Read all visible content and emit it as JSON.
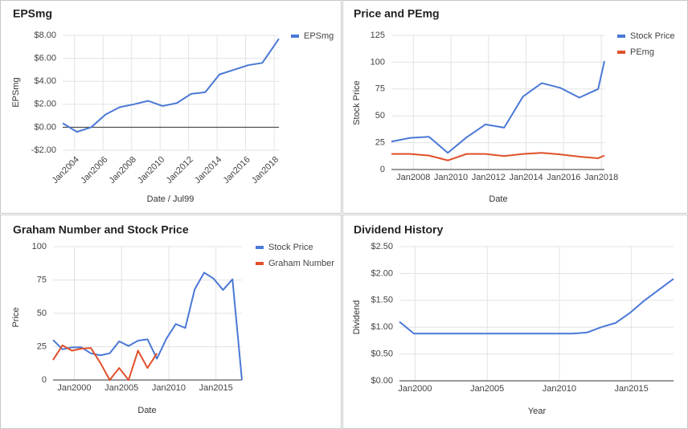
{
  "chart_data": [
    {
      "type": "line",
      "title": "EPSmg",
      "x_label": "Date / Jul99",
      "y_label": "EPSmg",
      "x": [
        "2003-03",
        "2004-03",
        "2005-03",
        "2006-03",
        "2007-03",
        "2008-03",
        "2009-03",
        "2010-03",
        "2011-03",
        "2012-03",
        "2013-03",
        "2014-03",
        "2015-03",
        "2016-03",
        "2017-03",
        "2018-05"
      ],
      "series": [
        {
          "name": "EPSmg",
          "color": "#4a78d6",
          "values": [
            0.35,
            -0.4,
            0.0,
            1.1,
            1.75,
            2.0,
            2.3,
            1.85,
            2.1,
            2.9,
            3.05,
            4.6,
            5.0,
            5.4,
            5.6,
            7.7
          ]
        }
      ],
      "xlim": [
        "2003-03",
        "2018-05"
      ],
      "xticks": [
        {
          "value": "2004-01",
          "label": "Jan2004"
        },
        {
          "value": "2006-01",
          "label": "Jan2006"
        },
        {
          "value": "2008-01",
          "label": "Jan2008"
        },
        {
          "value": "2010-01",
          "label": "Jan2010"
        },
        {
          "value": "2012-01",
          "label": "Jan2012"
        },
        {
          "value": "2014-01",
          "label": "Jan2014"
        },
        {
          "value": "2016-01",
          "label": "Jan2016"
        },
        {
          "value": "2018-01",
          "label": "Jan2018"
        }
      ],
      "ylim": [
        -2,
        8
      ],
      "yticks": [
        {
          "value": 8,
          "label": "$8.00"
        },
        {
          "value": 6,
          "label": "$6.00"
        },
        {
          "value": 4,
          "label": "$4.00"
        },
        {
          "value": 2,
          "label": "$2.00"
        },
        {
          "value": 0,
          "label": "$0.00"
        },
        {
          "value": -2,
          "label": "-$2.00"
        }
      ],
      "grid": true,
      "legend": "right"
    },
    {
      "type": "line",
      "title": "Price and PEmg",
      "x_label": "Date",
      "y_label": "Stock Price",
      "x": [
        "2006-11",
        "2007-11",
        "2008-11",
        "2009-11",
        "2010-11",
        "2011-11",
        "2012-11",
        "2013-11",
        "2014-11",
        "2015-11",
        "2016-11",
        "2017-11",
        "2018-03"
      ],
      "series": [
        {
          "name": "Stock Price",
          "color": "#4a78d6",
          "values": [
            26,
            29.5,
            30.5,
            15.5,
            30,
            42,
            39,
            68,
            80.5,
            76,
            67,
            75,
            101
          ]
        },
        {
          "name": "PEmg",
          "color": "#e0502a",
          "values": [
            14.5,
            14.5,
            13,
            8.5,
            14.5,
            14.5,
            12.5,
            14.5,
            15.5,
            14,
            12,
            10.5,
            13
          ]
        }
      ],
      "xlim": [
        "2006-11",
        "2018-03"
      ],
      "xticks": [
        {
          "value": "2008-01",
          "label": "Jan2008"
        },
        {
          "value": "2010-01",
          "label": "Jan2010"
        },
        {
          "value": "2012-01",
          "label": "Jan2012"
        },
        {
          "value": "2014-01",
          "label": "Jan2014"
        },
        {
          "value": "2016-01",
          "label": "Jan2016"
        },
        {
          "value": "2018-01",
          "label": "Jan2018"
        }
      ],
      "ylim": [
        0,
        125
      ],
      "yticks": [
        0,
        25,
        50,
        75,
        100,
        125
      ],
      "grid": true,
      "legend": "right"
    },
    {
      "type": "line",
      "title": "Graham Number and Stock Price",
      "x_label": "Date",
      "y_label": "Price",
      "x": [
        "1997-10",
        "1998-10",
        "1999-10",
        "2000-10",
        "2001-10",
        "2002-10",
        "2003-10",
        "2004-10",
        "2005-10",
        "2006-10",
        "2007-10",
        "2008-10",
        "2009-10",
        "2010-10",
        "2011-10",
        "2012-10",
        "2013-10",
        "2014-10",
        "2015-10",
        "2016-10",
        "2017-10"
      ],
      "series": [
        {
          "name": "Stock Price",
          "color": "#4a78d6",
          "values": [
            30,
            23,
            24.5,
            24.5,
            20,
            18.5,
            20,
            29,
            25.5,
            29.5,
            30.5,
            16,
            31,
            42,
            39,
            68,
            80.5,
            76,
            67.5,
            75.5,
            0
          ]
        },
        {
          "name": "Graham Number",
          "color": "#e0502a",
          "values": [
            15,
            26,
            22,
            23.5,
            24,
            13,
            0,
            9,
            0,
            22,
            9,
            20,
            null,
            null,
            null,
            null,
            null,
            null,
            null,
            null,
            null
          ]
        }
      ],
      "xlim": [
        "1997-10",
        "2017-10"
      ],
      "xticks": [
        {
          "value": "2000-01",
          "label": "Jan2000"
        },
        {
          "value": "2005-01",
          "label": "Jan2005"
        },
        {
          "value": "2010-01",
          "label": "Jan2010"
        },
        {
          "value": "2015-01",
          "label": "Jan2015"
        }
      ],
      "ylim": [
        0,
        100
      ],
      "yticks": [
        0,
        25,
        50,
        75,
        100
      ],
      "grid": true,
      "legend": "right"
    },
    {
      "type": "line",
      "title": "Dividend History",
      "x_label": "Year",
      "y_label": "Dividend",
      "x": [
        "1998-12",
        "1999-12",
        "2000-12",
        "2001-12",
        "2002-12",
        "2003-12",
        "2004-12",
        "2005-12",
        "2006-12",
        "2007-12",
        "2008-12",
        "2009-12",
        "2010-12",
        "2011-12",
        "2012-12",
        "2013-12",
        "2014-12",
        "2015-12",
        "2016-12",
        "2017-12"
      ],
      "values": [
        1.1,
        0.88,
        0.88,
        0.88,
        0.88,
        0.88,
        0.88,
        0.88,
        0.88,
        0.88,
        0.88,
        0.88,
        0.88,
        0.9,
        1.0,
        1.08,
        1.27,
        1.5,
        1.7,
        1.9
      ],
      "color": "#4a78d6",
      "xlim": [
        "1998-12",
        "2017-12"
      ],
      "xticks": [
        {
          "value": "2000-01",
          "label": "Jan2000"
        },
        {
          "value": "2005-01",
          "label": "Jan2005"
        },
        {
          "value": "2010-01",
          "label": "Jan2010"
        },
        {
          "value": "2015-01",
          "label": "Jan2015"
        }
      ],
      "ylim": [
        0,
        2.5
      ],
      "yticks": [
        {
          "value": 0,
          "label": "$0.00"
        },
        {
          "value": 0.5,
          "label": "$0.50"
        },
        {
          "value": 1,
          "label": "$1.00"
        },
        {
          "value": 1.5,
          "label": "$1.50"
        },
        {
          "value": 2,
          "label": "$2.00"
        },
        {
          "value": 2.5,
          "label": "$2.50"
        }
      ],
      "grid": true
    }
  ]
}
